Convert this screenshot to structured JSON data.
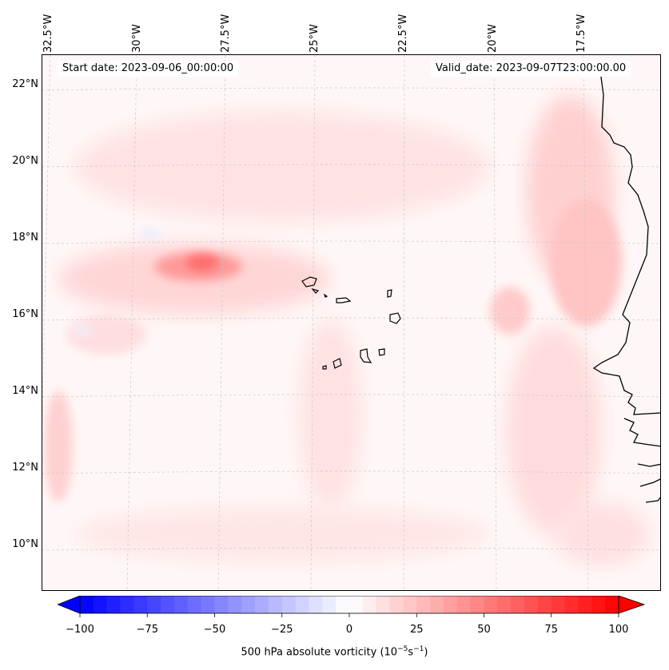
{
  "map": {
    "start_date": "Start date: 2023-09-06_00:00:00",
    "valid_date": "Valid_date: 2023-09-07T23:00:00.00",
    "lon_labels": [
      "32.5°W",
      "30°W",
      "27.5°W",
      "25°W",
      "22.5°W",
      "20°W",
      "17.5°W"
    ],
    "lat_labels": [
      "22°N",
      "20°N",
      "18°N",
      "16°N",
      "14°N",
      "12°N",
      "10°N"
    ],
    "colors": {
      "land_outline": "#000000",
      "grid": "#bbbbbb",
      "positive": "#ff0000",
      "negative": "#0000ff"
    }
  },
  "colorbar": {
    "label_prefix": "500 hPa absolute vorticity (10",
    "label_exp1": "−5",
    "label_mid": "s",
    "label_exp2": "−1",
    "label_suffix": ")",
    "min": -100,
    "max": 100,
    "ticks": [
      "−100",
      "−75",
      "−50",
      "−25",
      "0",
      "25",
      "50",
      "75",
      "100"
    ]
  }
}
